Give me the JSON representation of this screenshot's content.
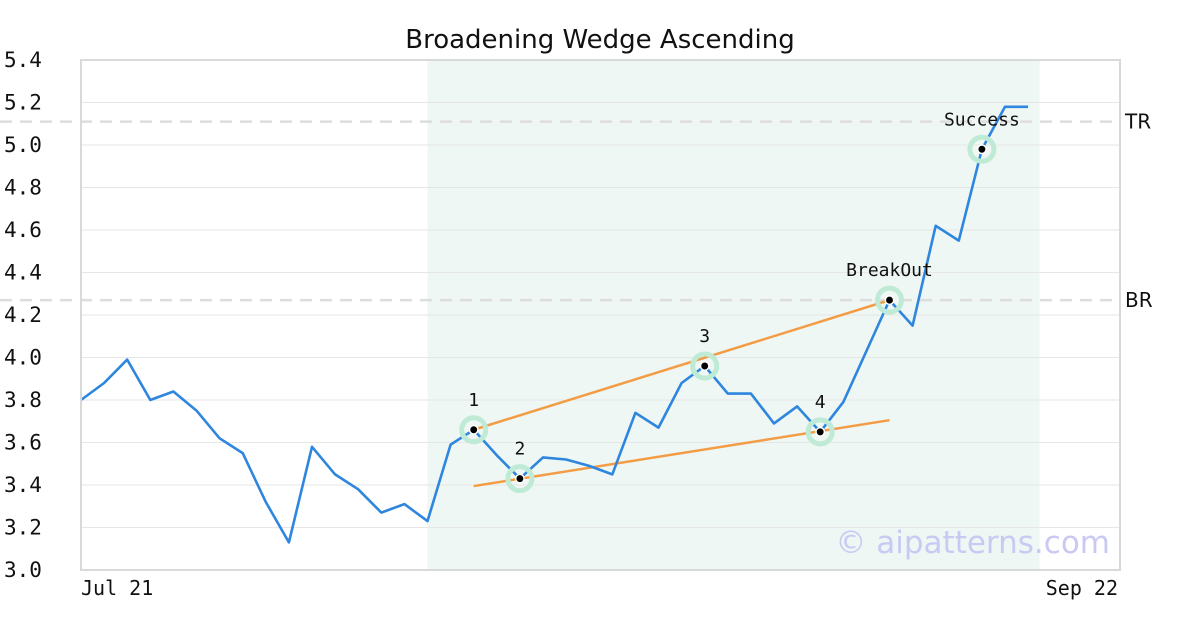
{
  "chart_data": {
    "type": "line",
    "title": "Broadening Wedge Ascending",
    "xlabel": "",
    "ylabel": "",
    "ylim": [
      3.0,
      5.4
    ],
    "yticks": [
      "3.0",
      "3.2",
      "3.4",
      "3.6",
      "3.8",
      "4.0",
      "4.2",
      "4.4",
      "4.6",
      "4.8",
      "5.0",
      "5.2",
      "5.4"
    ],
    "x_tick_labels": [
      "Jul 21",
      "Sep 22"
    ],
    "grid": "horizontal",
    "series": [
      {
        "color": "#2e86de",
        "values": [
          3.8,
          3.88,
          3.99,
          3.8,
          3.84,
          3.75,
          3.62,
          3.55,
          3.32,
          3.13,
          3.58,
          3.45,
          3.38,
          3.27,
          3.31,
          3.23,
          3.59,
          3.66,
          3.54,
          3.43,
          3.53,
          3.52,
          3.49,
          3.45,
          3.74,
          3.67,
          3.88,
          3.96,
          3.83,
          3.83,
          3.69,
          3.77,
          3.65,
          3.79,
          4.03,
          4.27,
          4.15,
          4.62,
          4.55,
          4.98,
          5.18,
          5.18
        ]
      }
    ],
    "pattern_region": {
      "start_index": 15,
      "end_index": 41.5,
      "color": "#eef7f3"
    },
    "levels": [
      {
        "label": "TR",
        "value": 5.11
      },
      {
        "label": "BR",
        "value": 4.27
      }
    ],
    "trendlines": [
      {
        "color": "#f39c45",
        "from": {
          "x": 17,
          "y": 3.66
        },
        "to": {
          "x": 35,
          "y": 4.27
        }
      },
      {
        "color": "#f39c45",
        "from": {
          "x": 17,
          "y": 3.395
        },
        "to": {
          "x": 35,
          "y": 3.705
        }
      }
    ],
    "points": [
      {
        "label": "1",
        "x": 17,
        "y": 3.66
      },
      {
        "label": "2",
        "x": 19,
        "y": 3.43
      },
      {
        "label": "3",
        "x": 27,
        "y": 3.96
      },
      {
        "label": "4",
        "x": 32,
        "y": 3.65
      },
      {
        "label": "BreakOut",
        "x": 35,
        "y": 4.27
      },
      {
        "label": "Success",
        "x": 39,
        "y": 4.98
      }
    ],
    "watermark": "© aipatterns.com"
  }
}
